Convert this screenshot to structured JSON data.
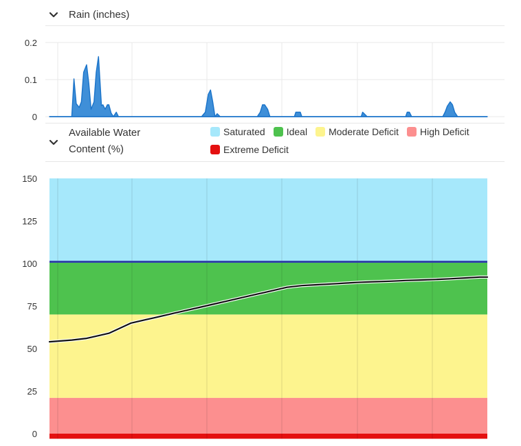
{
  "rain_section": {
    "title": "Rain (inches)",
    "icon": "chevron-down-icon"
  },
  "water_section": {
    "title_line1": "Available Water",
    "title_line2": "Content (%)",
    "icon": "chevron-down-icon",
    "legend": [
      {
        "label": "Saturated",
        "color": "#a6e8fb"
      },
      {
        "label": "Ideal",
        "color": "#4ec24e"
      },
      {
        "label": "Moderate Deficit",
        "color": "#fdf48e"
      },
      {
        "label": "High Deficit",
        "color": "#fc8f8f"
      },
      {
        "label": "Extreme Deficit",
        "color": "#e41010"
      }
    ]
  },
  "chart_data": [
    {
      "type": "area",
      "ylabel": "",
      "xlabel": "",
      "ylim": [
        0,
        0.2
      ],
      "yticks": [
        "0.2",
        "0.1",
        "0"
      ],
      "grid": true,
      "color": "#1a73c9",
      "fill_color": "#3f8fd8",
      "x": [
        0,
        2,
        3,
        3.3,
        3.6,
        4,
        4.3,
        4.6,
        5,
        5.3,
        5.6,
        6,
        6.3,
        6.6,
        7,
        7.2,
        7.5,
        7.8,
        8,
        8.3,
        8.6,
        9,
        9.3,
        9.7,
        10,
        10.5,
        11,
        11.3,
        11.6,
        12,
        12.5,
        13,
        14,
        20,
        20.5,
        21,
        21.4,
        21.7,
        22,
        22.3,
        22.6,
        23,
        23.3,
        23.6,
        24,
        27,
        28,
        28.4,
        28.7,
        29,
        29.4,
        29.7,
        30,
        30.3,
        30.6,
        31,
        32,
        33,
        33.2,
        33.5,
        33.8,
        34,
        34.5,
        34.8,
        35,
        35.4,
        35.7,
        36,
        36.3,
        36.6,
        37,
        38,
        42,
        42.2,
        42.5,
        42.8,
        43,
        48,
        48.2,
        48.5,
        48.8,
        49,
        53,
        53.3,
        53.6,
        54,
        54.3,
        54.6,
        55,
        55.3,
        55.6,
        56,
        59
      ],
      "values": [
        0,
        0,
        0,
        0.102,
        0.035,
        0.025,
        0.04,
        0.12,
        0.14,
        0.09,
        0.02,
        0.04,
        0.12,
        0.162,
        0.03,
        0.032,
        0.02,
        0.032,
        0.032,
        0.01,
        0,
        0.012,
        0,
        0,
        0,
        0,
        0,
        0,
        0,
        0,
        0,
        0,
        0,
        0,
        0,
        0.012,
        0.06,
        0.072,
        0.04,
        0,
        0.008,
        0,
        0,
        0,
        0,
        0,
        0,
        0.012,
        0.032,
        0.032,
        0.02,
        0,
        0,
        0,
        0,
        0,
        0,
        0,
        0.012,
        0.012,
        0.012,
        0,
        0,
        0,
        0,
        0,
        0,
        0,
        0,
        0,
        0,
        0,
        0,
        0.012,
        0.006,
        0,
        0,
        0,
        0.012,
        0.012,
        0,
        0,
        0,
        0.012,
        0.028,
        0.04,
        0.032,
        0.012,
        0,
        0,
        0,
        0,
        0
      ]
    },
    {
      "type": "line",
      "ylabel": "",
      "xlabel": "",
      "ylim": [
        -3,
        150
      ],
      "yticks": [
        "150",
        "125",
        "100",
        "75",
        "50",
        "25",
        "0"
      ],
      "grid": true,
      "bands": [
        {
          "name": "Saturated",
          "from": 101,
          "to": 150,
          "color": "#a6e8fb"
        },
        {
          "name": "Ideal",
          "from": 70,
          "to": 101,
          "color": "#4ec24e"
        },
        {
          "name": "Moderate Deficit",
          "from": 21,
          "to": 70,
          "color": "#fdf48e"
        },
        {
          "name": "High Deficit",
          "from": 0,
          "to": 21,
          "color": "#fc8f8f"
        },
        {
          "name": "Extreme Deficit",
          "from": -3,
          "to": 0,
          "color": "#e41010"
        }
      ],
      "threshold": {
        "value": 101,
        "color": "#3344aa"
      },
      "series": [
        {
          "color": "#111111",
          "x": [
            0,
            3,
            5,
            7,
            8,
            9,
            10,
            11,
            12,
            13,
            14,
            16,
            18,
            20,
            22,
            24,
            26,
            28,
            30,
            32,
            34,
            36,
            38,
            40,
            42,
            44,
            46,
            48,
            50,
            52,
            54,
            56,
            58,
            59
          ],
          "values": [
            54,
            55,
            56,
            58,
            59,
            61,
            63,
            65,
            66,
            67,
            68,
            70,
            72,
            74,
            76,
            78,
            80,
            82,
            84,
            86,
            87,
            87.5,
            88,
            88.5,
            89,
            89.3,
            89.6,
            90,
            90.3,
            90.6,
            91,
            91.5,
            92,
            92
          ]
        }
      ]
    }
  ]
}
